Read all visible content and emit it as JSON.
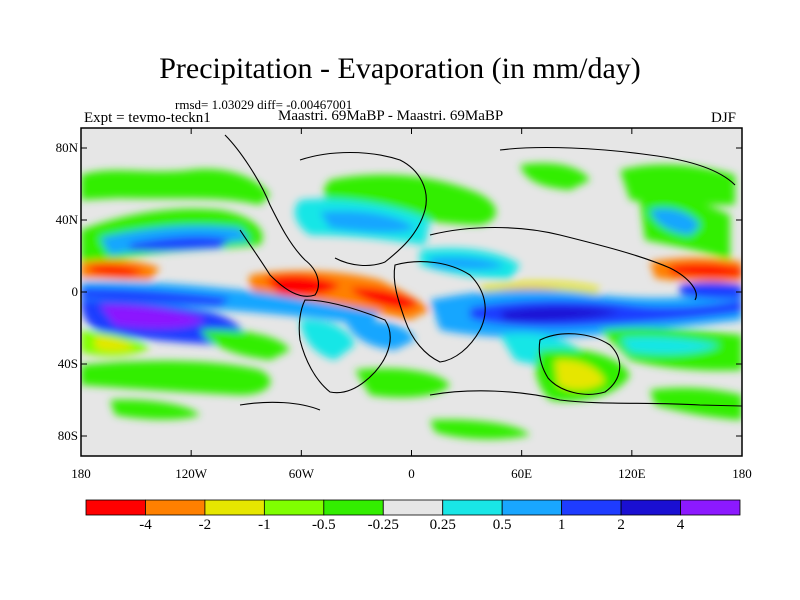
{
  "title": "Precipitation - Evaporation (in mm/day)",
  "stats": "rmsd= 1.03029 diff= -0.00467001",
  "experiment": "Expt = tevmo-teckn1",
  "comparison": "Maastri.  69MaBP - Maastri.  69MaBP",
  "season": "DJF",
  "y_ticks": [
    "80N",
    "40N",
    "0",
    "40S",
    "80S"
  ],
  "x_ticks": [
    "180",
    "120W",
    "60W",
    "0",
    "60E",
    "120E",
    "180"
  ],
  "colorbar": {
    "colors": [
      "#ff0000",
      "#ff8000",
      "#e6e600",
      "#80ff00",
      "#33ee00",
      "#e6e6e6",
      "#19e6e6",
      "#19a6ff",
      "#1e3cff",
      "#1a0fd2",
      "#8c19ff"
    ],
    "labels": [
      "-4",
      "-2",
      "-1",
      "-0.5",
      "-0.25",
      "0.25",
      "0.5",
      "1",
      "2",
      "4"
    ]
  }
}
